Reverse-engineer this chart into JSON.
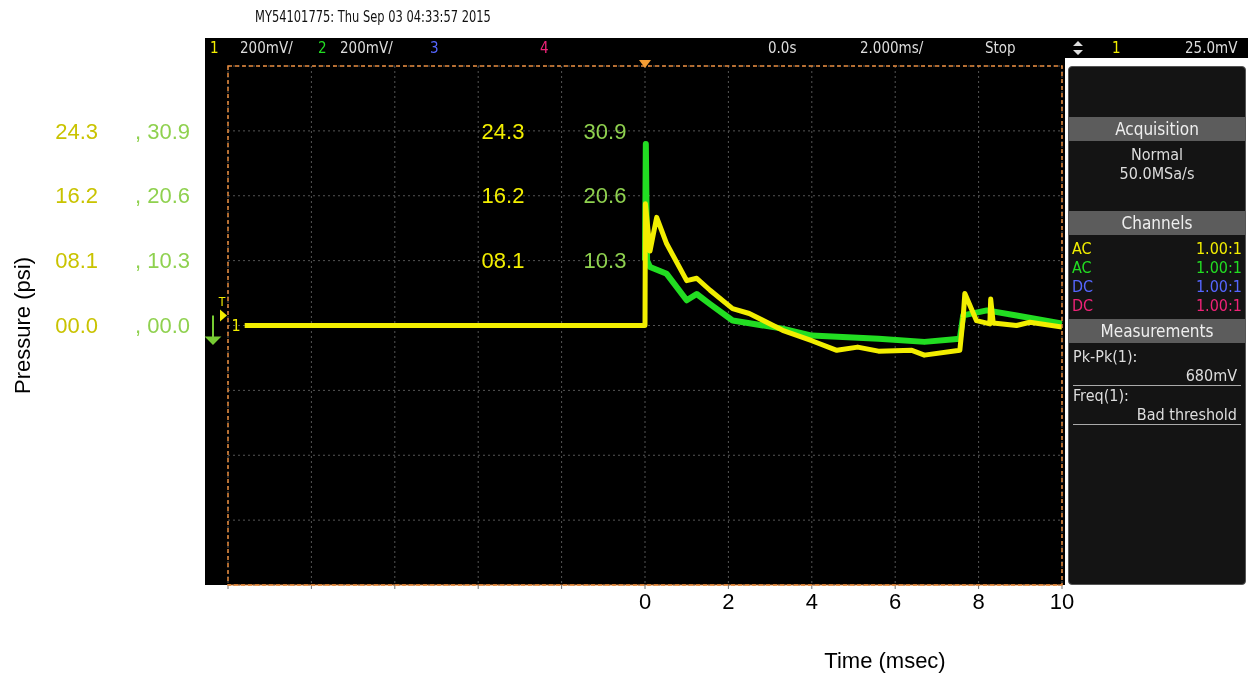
{
  "chart_data": {
    "type": "line",
    "xlabel": "Time (msec)",
    "ylabel": "Pressure (psi)",
    "xlim": [
      -10,
      10
    ],
    "xticks": [
      {
        "value": -10,
        "label": null
      },
      {
        "value": -8,
        "label": null
      },
      {
        "value": -6,
        "label": null
      },
      {
        "value": -4,
        "label": null
      },
      {
        "value": -2,
        "label": null
      },
      0,
      2,
      4,
      6,
      8,
      10
    ],
    "ylim": [
      -32.4,
      32.4
    ],
    "yticks": [
      {
        "value": -32.4,
        "label": null
      },
      {
        "value": -24.3,
        "label": null
      },
      {
        "value": -16.2,
        "label": null
      },
      {
        "value": -8.1,
        "label": null
      },
      {
        "value": 0,
        "label": "00.0"
      },
      {
        "value": 8.1,
        "label": "08.1"
      },
      16.2,
      24.3,
      {
        "value": 32.4,
        "label": null
      }
    ],
    "y2lim": [
      -41.2,
      41.2
    ],
    "y2ticks": [
      {
        "value": 0,
        "label": ", 00.0"
      },
      {
        "value": 10.3,
        "label": ", 10.3"
      },
      {
        "value": 20.6,
        "label": ", 20.6"
      },
      {
        "value": 30.9,
        "label": ", 30.9"
      }
    ],
    "grid": true,
    "legend": false,
    "marker": "none",
    "line_style": "solid",
    "series": [
      {
        "color": "#22dd22",
        "axis": "y2",
        "x": [
          0,
          0.02,
          0.05,
          0.12,
          0.52,
          1.0,
          1.24,
          1.56,
          2.1,
          3.3,
          4.0,
          5.6,
          6.7,
          7.55,
          7.63,
          8.2,
          8.91,
          10.0
        ],
        "values": [
          10.3,
          28.8,
          10.3,
          9.3,
          8.2,
          4.0,
          5.0,
          3.4,
          0.8,
          -0.5,
          -1.6,
          -2.1,
          -2.6,
          -2.1,
          1.6,
          2.4,
          1.6,
          0.3
        ]
      },
      {
        "color": "#f2ee00",
        "x": [
          -9.6,
          0,
          0.01,
          0.12,
          0.28,
          0.52,
          1.0,
          1.24,
          1.56,
          2.1,
          2.5,
          3.3,
          4.0,
          4.6,
          5.1,
          5.6,
          6.4,
          6.7,
          7.55,
          7.63,
          7.67,
          7.95,
          8.27,
          8.29,
          8.35,
          8.91,
          9.23,
          10.0
        ],
        "values": [
          0,
          0,
          15.2,
          9.3,
          13.5,
          10.2,
          5.6,
          5.9,
          4.4,
          2.1,
          1.5,
          -0.6,
          -1.9,
          -3.1,
          -2.7,
          -3.2,
          -3.1,
          -3.7,
          -3.1,
          1.0,
          4.0,
          0.6,
          0.2,
          3.3,
          0.3,
          0,
          0.4,
          -0.2
        ]
      }
    ],
    "annotations": [
      "MY54101775: Thu Sep 03 04:33:57 2015",
      "1",
      "200mV/",
      "2",
      "200mV/",
      "3",
      "4",
      "0.0s",
      "2.000ms/",
      "Stop",
      "1",
      "25.0mV",
      "Acquisition",
      "Normal",
      "50.0MSa/s",
      "Channels",
      "AC",
      "1.00:1",
      "AC",
      "1.00:1",
      "DC",
      "1.00:1",
      "DC",
      "1.00:1",
      "Measurements",
      "Pk-Pk(1):",
      "680mV",
      "Freq(1):",
      "Bad threshold",
      "T",
      "1",
      "24.3",
      "30.9",
      "16.2",
      "20.6",
      "08.1",
      "10.3"
    ]
  }
}
